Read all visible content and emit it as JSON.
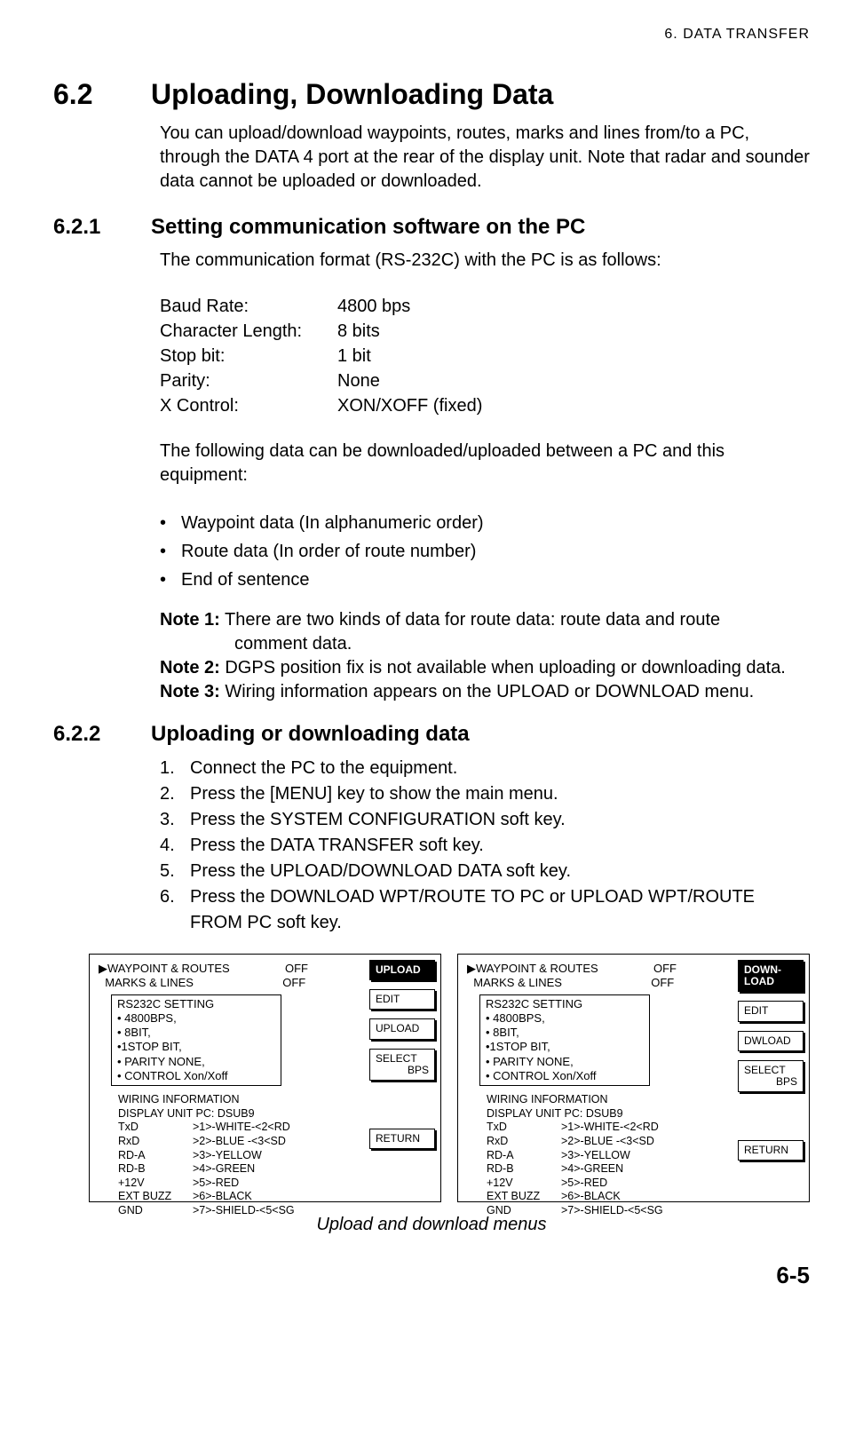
{
  "header": {
    "chapter": "6.  DATA  TRANSFER"
  },
  "section": {
    "number": "6.2",
    "title": "Uploading, Downloading Data",
    "intro": "You can upload/download waypoints, routes, marks and lines from/to a PC, through the DATA 4 port at the rear of the display unit. Note that radar and sounder data cannot be uploaded or downloaded."
  },
  "sub1": {
    "number": "6.2.1",
    "title": "Setting communication software on the PC",
    "lead": "The communication format (RS-232C) with the PC is as follows:",
    "params": [
      {
        "k": "Baud Rate:",
        "v": "4800 bps"
      },
      {
        "k": "Character Length:",
        "v": "8 bits"
      },
      {
        "k": "Stop bit:",
        "v": "1 bit"
      },
      {
        "k": "Parity:",
        "v": "None"
      },
      {
        "k": "X Control:",
        "v": "XON/XOFF (fixed)"
      }
    ],
    "lead2": "The following data can be downloaded/uploaded between a PC and this equipment:",
    "bullets": [
      "Waypoint data (In alphanumeric order)",
      "Route data (In order of route number)",
      "End of sentence"
    ],
    "notes": {
      "n1_label": "Note 1:",
      "n1_text": " There are two kinds of data for route data: route data and route comment data.",
      "n2_label": "Note 2:",
      "n2_text": " DGPS position fix is not available when uploading or downloading data.",
      "n3_label": "Note 3:",
      "n3_text": " Wiring information appears on the UPLOAD or DOWNLOAD menu."
    }
  },
  "sub2": {
    "number": "6.2.2",
    "title": "Uploading or downloading data",
    "steps": [
      "Connect the PC to the equipment.",
      "Press the [MENU] key to show the main menu.",
      "Press the SYSTEM CONFIGURATION soft key.",
      "Press the DATA TRANSFER soft key.",
      "Press the UPLOAD/DOWNLOAD DATA soft key.",
      "Press the DOWNLOAD WPT/ROUTE TO PC or UPLOAD WPT/ROUTE FROM PC soft key."
    ]
  },
  "menu": {
    "row1_label": "WAYPOINT & ROUTES",
    "row1_val": "OFF",
    "row2_label": "MARKS & LINES",
    "row2_val": "OFF",
    "rs_title": "RS232C SETTING",
    "rs_items": [
      "• 4800BPS,",
      "• 8BIT,",
      "•1STOP BIT,",
      "• PARITY NONE,",
      "• CONTROL Xon/Xoff"
    ],
    "wiring_title": "WIRING INFORMATION",
    "wiring_sub": "DISPLAY UNIT    PC: DSUB9",
    "wiring_rows": [
      {
        "a": "TxD",
        "b": ">1>-WHITE-<2<RD"
      },
      {
        "a": "RxD",
        "b": ">2>-BLUE  -<3<SD"
      },
      {
        "a": "RD-A",
        "b": ">3>-YELLOW"
      },
      {
        "a": "RD-B",
        "b": ">4>-GREEN"
      },
      {
        "a": "+12V",
        "b": ">5>-RED"
      },
      {
        "a": "EXT BUZZ",
        "b": ">6>-BLACK"
      },
      {
        "a": "GND",
        "b": ">7>-SHIELD-<5<SG"
      }
    ]
  },
  "softkeys_upload": {
    "active": "UPLOAD",
    "edit": "EDIT",
    "action": "UPLOAD",
    "select_l1": "SELECT",
    "select_l2": "BPS",
    "ret": "RETURN"
  },
  "softkeys_download": {
    "active_l1": "DOWN-",
    "active_l2": "LOAD",
    "edit": "EDIT",
    "action": "DWLOAD",
    "select_l1": "SELECT",
    "select_l2": "BPS",
    "ret": "RETURN"
  },
  "caption": "Upload and download menus",
  "page": "6-5"
}
